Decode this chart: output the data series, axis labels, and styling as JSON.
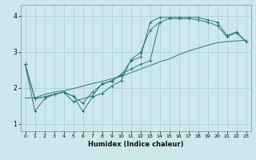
{
  "xlabel": "Humidex (Indice chaleur)",
  "bg_color": "#cce8ec",
  "line_color": "#2d7a6e",
  "grid_color": "#aacdd4",
  "xlim": [
    -0.5,
    23.5
  ],
  "ylim": [
    0.8,
    4.3
  ],
  "yticks": [
    1,
    2,
    3,
    4
  ],
  "xticks": [
    0,
    1,
    2,
    3,
    4,
    5,
    6,
    7,
    8,
    9,
    10,
    11,
    12,
    13,
    14,
    15,
    16,
    17,
    18,
    19,
    20,
    21,
    22,
    23
  ],
  "series1_x": [
    0,
    1,
    2,
    3,
    4,
    5,
    6,
    7,
    8,
    9,
    10,
    11,
    12,
    13,
    14,
    15,
    16,
    17,
    18,
    19,
    20,
    21,
    22,
    23
  ],
  "series1_y": [
    2.65,
    1.7,
    1.75,
    1.82,
    1.88,
    1.77,
    1.58,
    1.88,
    2.1,
    2.2,
    2.35,
    2.75,
    2.85,
    3.82,
    3.95,
    3.95,
    3.95,
    3.95,
    3.95,
    3.88,
    3.82,
    3.45,
    3.55,
    3.28
  ],
  "series2_x": [
    0,
    1,
    2,
    3,
    4,
    5,
    6,
    7,
    8,
    9,
    10,
    11,
    12,
    13,
    14,
    15,
    16,
    17,
    18,
    19,
    20,
    21,
    22,
    23
  ],
  "series2_y": [
    2.65,
    1.7,
    1.75,
    1.82,
    1.88,
    1.77,
    1.35,
    1.75,
    1.85,
    2.05,
    2.2,
    2.78,
    2.98,
    3.6,
    3.82,
    3.92,
    3.92,
    3.92,
    3.88,
    3.82,
    3.72,
    3.42,
    3.52,
    3.28
  ],
  "series3_x": [
    0,
    1,
    2,
    3,
    4,
    5,
    7,
    8,
    9,
    10,
    11,
    12,
    13,
    14
  ],
  "series3_y": [
    2.65,
    1.35,
    1.7,
    1.82,
    1.88,
    1.62,
    1.78,
    2.12,
    2.18,
    2.38,
    2.52,
    2.65,
    2.75,
    3.82
  ],
  "series4_x": [
    0,
    1,
    2,
    3,
    4,
    5,
    6,
    7,
    8,
    9,
    10,
    11,
    12,
    13,
    14,
    15,
    16,
    17,
    18,
    19,
    20,
    21,
    22,
    23
  ],
  "series4_y": [
    1.72,
    1.72,
    1.82,
    1.88,
    1.92,
    1.98,
    2.05,
    2.12,
    2.18,
    2.25,
    2.32,
    2.42,
    2.52,
    2.62,
    2.72,
    2.8,
    2.92,
    3.02,
    3.1,
    3.18,
    3.25,
    3.28,
    3.3,
    3.32
  ]
}
